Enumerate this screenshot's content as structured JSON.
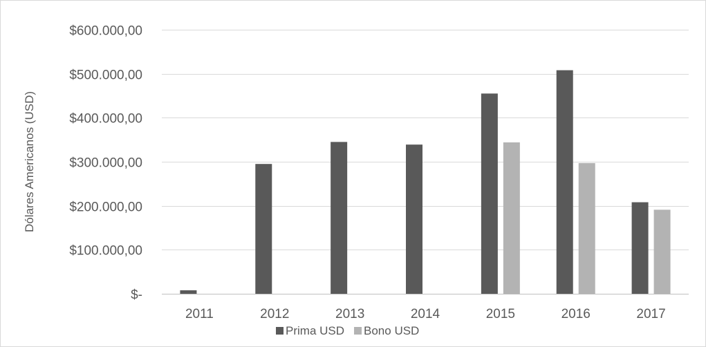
{
  "chart_data": {
    "type": "bar",
    "title": "",
    "xlabel": "",
    "ylabel": "Dólares Americanos (USD)",
    "categories": [
      "2011",
      "2012",
      "2013",
      "2014",
      "2015",
      "2016",
      "2017"
    ],
    "series": [
      {
        "name": "Prima USD",
        "color": "#595959",
        "values": [
          8000,
          295000,
          345000,
          339000,
          455000,
          508000,
          208000
        ]
      },
      {
        "name": "Bono USD",
        "color": "#b3b3b3",
        "values": [
          0,
          0,
          0,
          0,
          344000,
          297000,
          191000
        ]
      }
    ],
    "ylim": [
      0,
      600000
    ],
    "yticks": [
      0,
      100000,
      200000,
      300000,
      400000,
      500000,
      600000
    ],
    "ytick_labels": [
      "$-",
      "$100.000,00",
      "$200.000,00",
      "$300.000,00",
      "$400.000,00",
      "$500.000,00",
      "$600.000,00"
    ],
    "grid": true,
    "gridline_color": "#d9d9d9",
    "legend_position": "bottom"
  }
}
